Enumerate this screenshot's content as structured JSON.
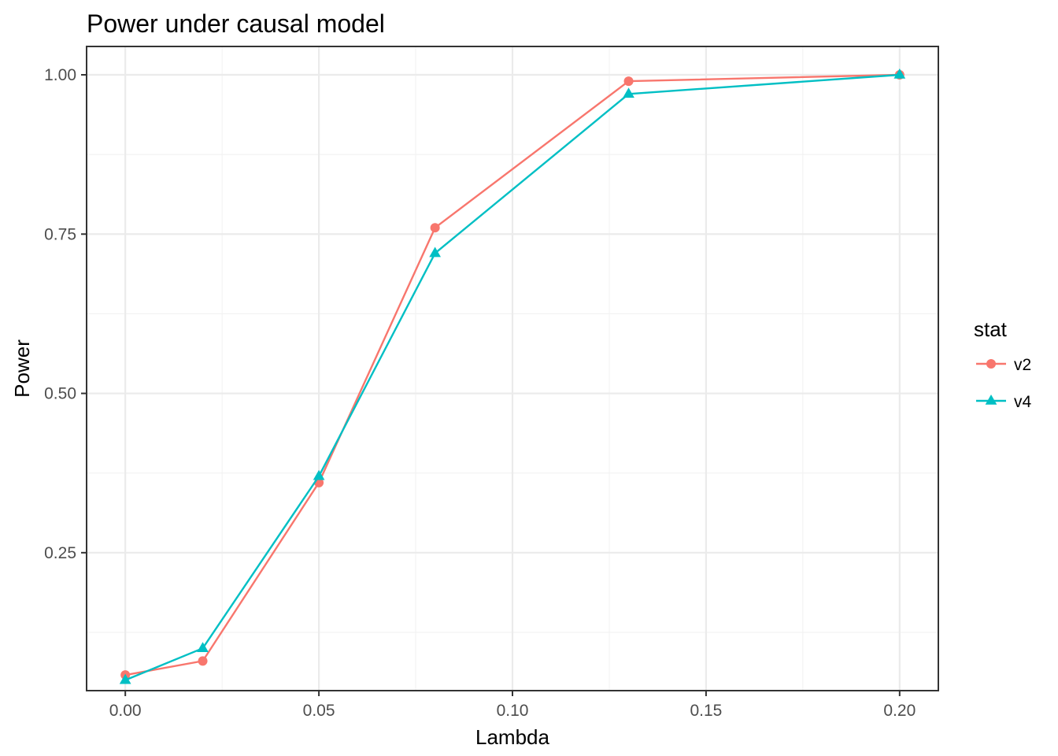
{
  "chart_data": {
    "type": "line",
    "title": "Power under causal model",
    "xlabel": "Lambda",
    "ylabel": "Power",
    "x": [
      0.0,
      0.02,
      0.05,
      0.08,
      0.13,
      0.2
    ],
    "xlim": [
      -0.01,
      0.21
    ],
    "ylim": [
      0.0335,
      1.0445
    ],
    "xticks": [
      0.0,
      0.05,
      0.1,
      0.15,
      0.2
    ],
    "xtick_labels": [
      "0.00",
      "0.05",
      "0.10",
      "0.15",
      "0.20"
    ],
    "yticks": [
      0.25,
      0.5,
      0.75,
      1.0
    ],
    "ytick_labels": [
      "0.25",
      "0.50",
      "0.75",
      "1.00"
    ],
    "grid": true,
    "legend": {
      "title": "stat",
      "position": "right"
    },
    "series": [
      {
        "name": "v2",
        "color": "#F8766D",
        "marker": "circle",
        "values": [
          0.058,
          0.08,
          0.36,
          0.76,
          0.99,
          1.0
        ]
      },
      {
        "name": "v4",
        "color": "#00BFC4",
        "marker": "triangle",
        "values": [
          0.05,
          0.1,
          0.37,
          0.72,
          0.97,
          1.0
        ]
      }
    ]
  }
}
